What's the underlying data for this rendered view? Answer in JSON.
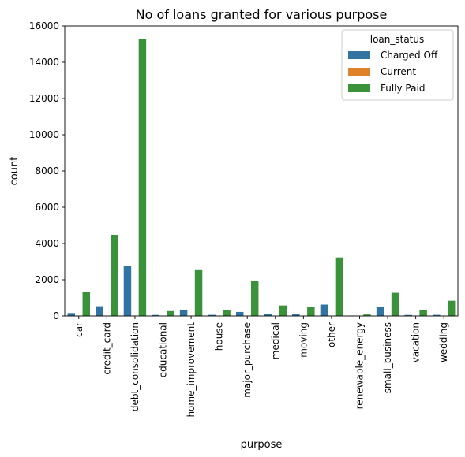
{
  "chart_data": {
    "type": "bar",
    "title": "No of loans granted for various purpose",
    "xlabel": "purpose",
    "ylabel": "count",
    "ylim": [
      0,
      16000
    ],
    "yticks": [
      0,
      2000,
      4000,
      6000,
      8000,
      10000,
      12000,
      14000,
      16000
    ],
    "grid": false,
    "legend": {
      "title": "loan_status",
      "placement": "top-right"
    },
    "categories": [
      "car",
      "credit_card",
      "debt_consolidation",
      "educational",
      "home_improvement",
      "house",
      "major_purchase",
      "medical",
      "moving",
      "other",
      "renewable_energy",
      "small_business",
      "vacation",
      "wedding"
    ],
    "series": [
      {
        "name": "Charged Off",
        "color": "#3274a1",
        "values": [
          160,
          540,
          2770,
          55,
          350,
          60,
          220,
          110,
          90,
          630,
          20,
          480,
          55,
          60
        ]
      },
      {
        "name": "Current",
        "color": "#e1812c",
        "values": [
          0,
          0,
          0,
          0,
          0,
          0,
          0,
          0,
          0,
          0,
          0,
          0,
          0,
          0
        ]
      },
      {
        "name": "Fully Paid",
        "color": "#3a923a",
        "values": [
          1340,
          4480,
          15300,
          270,
          2530,
          310,
          1930,
          580,
          480,
          3230,
          80,
          1280,
          320,
          840
        ]
      }
    ]
  }
}
